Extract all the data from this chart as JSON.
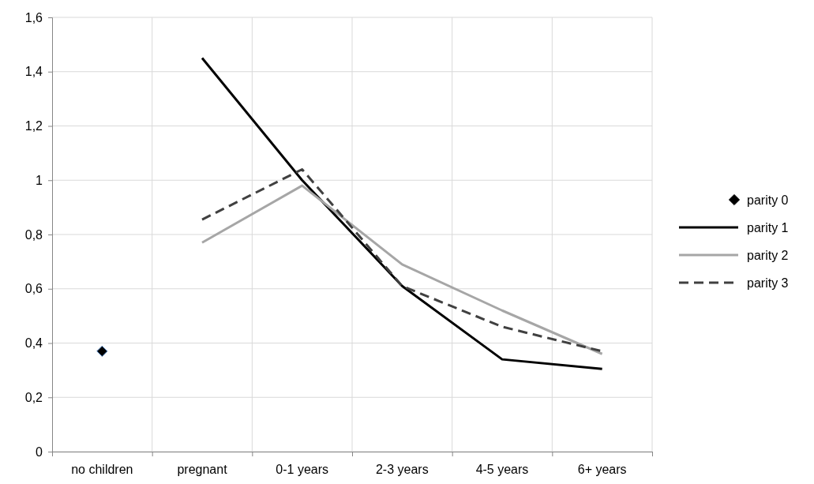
{
  "chart_data": {
    "type": "line",
    "categories": [
      "no children",
      "pregnant",
      "0-1 years",
      "2-3 years",
      "4-5 years",
      "6+ years"
    ],
    "series": [
      {
        "name": "parity 0",
        "type": "scatter",
        "marker": "diamond",
        "color": "#000000",
        "values": [
          0.37,
          null,
          null,
          null,
          null,
          null
        ]
      },
      {
        "name": "parity 1",
        "color": "#000000",
        "line_style": "solid",
        "values": [
          null,
          1.45,
          1.0,
          0.61,
          0.34,
          0.305
        ]
      },
      {
        "name": "parity 2",
        "color": "#a6a6a6",
        "line_style": "solid",
        "values": [
          null,
          0.77,
          0.98,
          0.69,
          0.52,
          0.36
        ]
      },
      {
        "name": "parity 3",
        "color": "#404040",
        "line_style": "dashed",
        "values": [
          null,
          0.855,
          1.04,
          0.61,
          0.46,
          0.37
        ]
      }
    ],
    "ylim": [
      0,
      1.6
    ],
    "yticks": [
      0,
      {
        "value": 0.2,
        "label": "0,2"
      },
      {
        "value": 0.4,
        "label": "0,4"
      },
      {
        "value": 0.6,
        "label": "0,6"
      },
      {
        "value": 0.8,
        "label": "0,8"
      },
      1,
      {
        "value": 1.2,
        "label": "1,2"
      },
      {
        "value": 1.4,
        "label": "1,4"
      },
      {
        "value": 1.6,
        "label": "1,6"
      }
    ],
    "grid": true,
    "legend": "right"
  }
}
